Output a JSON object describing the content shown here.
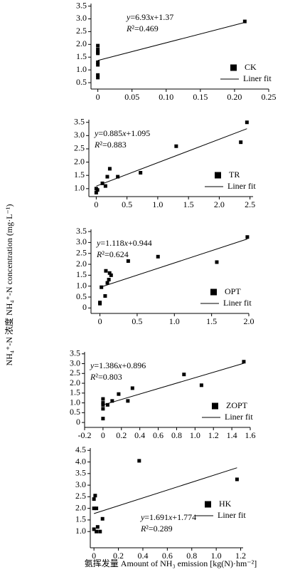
{
  "chart_data": [
    {
      "type": "scatter",
      "legend": "lower right",
      "annotation_loc": "upper center",
      "annotations": [
        "y=6.93x+1.37",
        "R²=0.469"
      ],
      "series": [
        {
          "name": "CK",
          "color": "#000000",
          "x": [
            0,
            0,
            0,
            0,
            0,
            0,
            0,
            0,
            0.215
          ],
          "values": [
            1.95,
            1.8,
            1.7,
            1.65,
            1.3,
            1.2,
            0.8,
            0.7,
            2.9
          ]
        },
        {
          "name": "Liner fit",
          "type": "line",
          "color": "#000000",
          "x": [
            0,
            0.215
          ],
          "values": [
            1.37,
            2.86
          ]
        }
      ],
      "xlim": [
        -0.01,
        0.25
      ],
      "ylim": [
        0.25,
        3.6
      ],
      "xticks": [
        0,
        0.05,
        {
          "value": 0.1,
          "label": "0.10"
        },
        0.15,
        {
          "value": 0.2,
          "label": "0.20"
        },
        0.25
      ],
      "yticks": [
        0.5,
        {
          "value": 1,
          "label": "1.0"
        },
        1.5,
        {
          "value": 2,
          "label": "2.0"
        },
        2.5,
        {
          "value": 3,
          "label": "3.0"
        },
        3.5
      ]
    },
    {
      "type": "scatter",
      "legend": "lower right",
      "annotation_loc": "upper left",
      "annotations": [
        "y=0.885x+1.095",
        "R²=0.883"
      ],
      "series": [
        {
          "name": "TR",
          "color": "#000000",
          "x": [
            0,
            0,
            0.02,
            0.1,
            0.15,
            0.18,
            0.22,
            0.35,
            0.72,
            1.3,
            2.35,
            2.45
          ],
          "values": [
            0.85,
            1.0,
            0.95,
            1.2,
            1.1,
            1.45,
            1.75,
            1.45,
            1.6,
            2.6,
            2.75,
            3.5
          ]
        },
        {
          "name": "Liner fit",
          "type": "line",
          "color": "#000000",
          "x": [
            0,
            2.45
          ],
          "values": [
            1.095,
            3.26
          ]
        }
      ],
      "xlim": [
        -0.12,
        2.55
      ],
      "ylim": [
        0.7,
        3.6
      ],
      "xticks": [
        0,
        0.5,
        {
          "value": 1,
          "label": "1.0"
        },
        1.5,
        {
          "value": 2,
          "label": "2.0"
        },
        2.5
      ],
      "yticks": [
        {
          "value": 1,
          "label": "1.0"
        },
        1.5,
        {
          "value": 2,
          "label": "2.0"
        },
        2.5,
        {
          "value": 3,
          "label": "3.0"
        },
        3.5
      ]
    },
    {
      "type": "scatter",
      "legend": "lower right",
      "annotation_loc": "upper left",
      "ylabel": "NH₄⁺-N 浓度 NH₄⁺-N concentration (mg·L⁻¹)",
      "annotations": [
        "y=1.118x+0.944",
        "R²=0.624"
      ],
      "series": [
        {
          "name": "OPT",
          "color": "#000000",
          "x": [
            0,
            0,
            0.02,
            0.07,
            0.08,
            0.1,
            0.12,
            0.13,
            0.15,
            0.38,
            0.78,
            1.57,
            1.98
          ],
          "values": [
            0.25,
            0.2,
            0.95,
            0.55,
            1.7,
            1.15,
            1.3,
            1.6,
            1.5,
            2.15,
            2.35,
            2.1,
            3.25
          ]
        },
        {
          "name": "Liner fit",
          "type": "line",
          "color": "#000000",
          "x": [
            0,
            1.98
          ],
          "values": [
            0.944,
            3.16
          ]
        }
      ],
      "xlim": [
        -0.12,
        2.0
      ],
      "ylim": [
        -0.25,
        3.6
      ],
      "xticks": [
        0,
        0.5,
        {
          "value": 1,
          "label": "1.0"
        },
        1.5,
        {
          "value": 2,
          "label": "2.0"
        }
      ],
      "yticks": [
        0,
        0.5,
        {
          "value": 1,
          "label": "1.0"
        },
        1.5,
        {
          "value": 2,
          "label": "2.0"
        },
        2.5,
        {
          "value": 3,
          "label": "3.0"
        },
        3.5
      ]
    },
    {
      "type": "scatter",
      "legend": "lower right",
      "annotation_loc": "upper left",
      "annotations": [
        "y=1.386x+0.896",
        "R²=0.803"
      ],
      "series": [
        {
          "name": "ZOPT",
          "color": "#000000",
          "x": [
            0,
            0,
            0,
            0,
            0,
            0.05,
            0.1,
            0.17,
            0.27,
            0.32,
            0.88,
            1.07,
            1.53
          ],
          "values": [
            0.2,
            0.7,
            0.9,
            1.0,
            1.2,
            0.9,
            1.1,
            1.45,
            1.1,
            1.75,
            2.45,
            1.9,
            3.1
          ]
        },
        {
          "name": "Liner fit",
          "type": "line",
          "color": "#000000",
          "x": [
            0,
            1.53
          ],
          "values": [
            0.896,
            3.02
          ]
        }
      ],
      "xlim": [
        -0.2,
        1.6
      ],
      "ylim": [
        -0.25,
        3.6
      ],
      "xticks": [
        -0.2,
        0,
        0.2,
        0.4,
        0.6,
        0.8,
        {
          "value": 1,
          "label": "1.0"
        },
        1.2,
        1.4,
        1.6
      ],
      "yticks": [
        0,
        0.5,
        {
          "value": 1,
          "label": "1.0"
        },
        1.5,
        {
          "value": 2,
          "label": "2.0"
        },
        2.5,
        {
          "value": 3,
          "label": "3.0"
        },
        3.5
      ]
    },
    {
      "type": "scatter",
      "legend": "center right",
      "annotation_loc": "lower center",
      "xlabel": "氨挥发量 Amount of NH₃ emission [kg(N)·hm⁻²]",
      "annotations": [
        "y=1.691x+1.774",
        "R²=0.289"
      ],
      "series": [
        {
          "name": "HK",
          "color": "#000000",
          "x": [
            0,
            0,
            0,
            0.01,
            0.02,
            0.02,
            0.03,
            0.05,
            0.07,
            0.37,
            1.17
          ],
          "values": [
            1.1,
            2.0,
            2.4,
            2.55,
            2.0,
            1.0,
            1.2,
            1.0,
            1.55,
            4.05,
            3.25
          ]
        },
        {
          "name": "Liner fit",
          "type": "line",
          "color": "#000000",
          "x": [
            0,
            1.17
          ],
          "values": [
            1.774,
            3.75
          ]
        }
      ],
      "xlim": [
        -0.03,
        1.22
      ],
      "ylim": [
        0.3,
        4.6
      ],
      "xticks": [
        0,
        0.2,
        0.4,
        0.6,
        0.8,
        {
          "value": 1,
          "label": "1.0"
        },
        1.2
      ],
      "yticks": [
        {
          "value": 1,
          "label": "1.0"
        },
        1.5,
        {
          "value": 2,
          "label": "2.0"
        },
        2.5,
        {
          "value": 3,
          "label": "3.0"
        },
        3.5,
        {
          "value": 4,
          "label": "4.0"
        },
        4.5
      ]
    }
  ]
}
